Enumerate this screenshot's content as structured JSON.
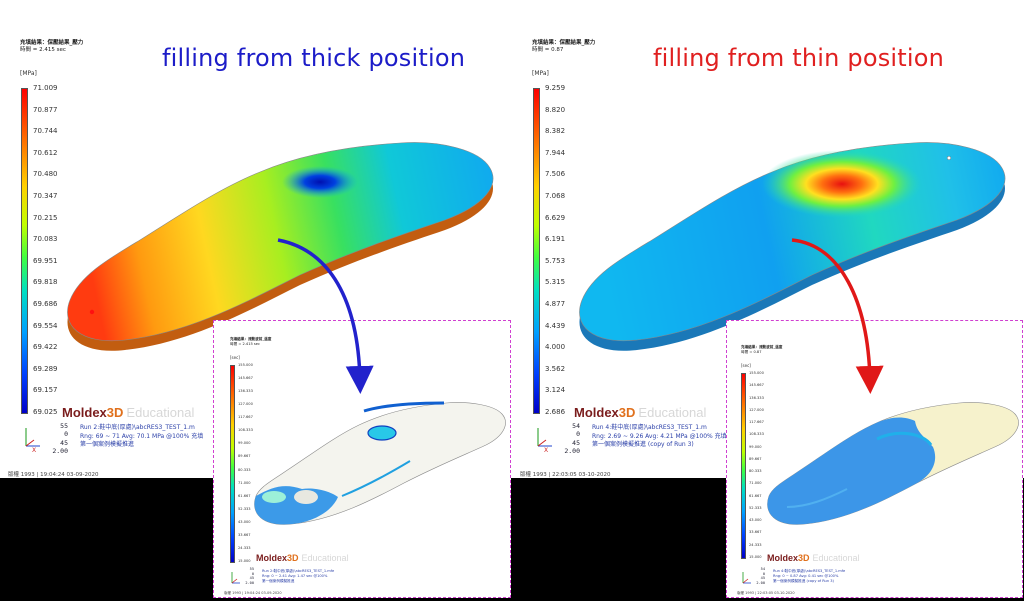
{
  "left_panel": {
    "meta_line1": "充填結果：保壓結果_壓力",
    "meta_line2": "時間 = 2.415 sec",
    "unit": "[MPa]",
    "headline": "filling from thick position",
    "headline_color": "#1c1cc8",
    "legend_ticks": [
      "71.009",
      "70.877",
      "70.744",
      "70.612",
      "70.480",
      "70.347",
      "70.215",
      "70.083",
      "69.951",
      "69.818",
      "69.686",
      "69.554",
      "69.422",
      "69.289",
      "69.157",
      "69.025"
    ],
    "brand": {
      "m": "Moldex",
      "d3": "3D",
      "edu": "Educational"
    },
    "view_info": [
      "55",
      "0",
      "45",
      "2.00"
    ],
    "footer": [
      "Run 2:鞋中底(厚處)\\abcRES3_TEST_1.m",
      "Rng: 69 ~ 71  Avg: 70.1 MPa @100% 充填",
      "第一個案例模擬推進"
    ],
    "stamp": "版權 1993 | 19:04:24 03-09-2020"
  },
  "right_panel": {
    "meta_line1": "充填結果：保壓結果_壓力",
    "meta_line2": "時間 = 0.87",
    "unit": "[MPa]",
    "headline": "filling from thin position",
    "headline_color": "#e02020",
    "legend_ticks": [
      "9.259",
      "8.820",
      "8.382",
      "7.944",
      "7.506",
      "7.068",
      "6.629",
      "6.191",
      "5.753",
      "5.315",
      "4.877",
      "4.439",
      "4.000",
      "3.562",
      "3.124",
      "2.686"
    ],
    "brand": {
      "m": "Moldex",
      "d3": "3D",
      "edu": "Educational"
    },
    "view_info": [
      "54",
      "0",
      "45",
      "2.00"
    ],
    "footer": [
      "Run 4:鞋中底(厚處)\\abcRES3_TEST_1.m",
      "Rng: 2.69 ~ 9.26  Avg: 4.21 MPa @100% 充填",
      "第一個案例模擬推進 (copy of Run 3)"
    ],
    "stamp": "版權 1993 | 22:03:05 03-10-2020"
  },
  "inset_left": {
    "meta_line1": "充填結果：流動波前_溫度",
    "meta_line2": "時間 = 2.415 sec",
    "unit": "[sec]",
    "legend_ticks": [
      "155.000",
      "145.667",
      "136.333",
      "127.000",
      "117.667",
      "108.333",
      "99.000",
      "89.667",
      "80.333",
      "71.000",
      "61.667",
      "52.333",
      "43.000",
      "33.667",
      "24.333",
      "15.000"
    ],
    "brand": {
      "m": "Moldex",
      "d3": "3D",
      "edu": "Educational"
    },
    "view_info": [
      "55",
      "0",
      "45",
      "2.00"
    ],
    "footer": [
      "Run 2:鞋中底(厚處)\\abcRES3_TEST_1.mfe",
      "Rng: 0 ~ 2.41  Avg: 1.47 sec @100%",
      "第一個案例模擬推進"
    ],
    "stamp": "版權 1993 | 19:04:24 03-09-2020"
  },
  "inset_right": {
    "meta_line1": "充填結果：流動波前_溫度",
    "meta_line2": "時間 = 0.87",
    "unit": "[sec]",
    "legend_ticks": [
      "155.000",
      "145.667",
      "136.333",
      "127.000",
      "117.667",
      "108.333",
      "99.000",
      "89.667",
      "80.333",
      "71.000",
      "61.667",
      "52.333",
      "43.000",
      "33.667",
      "24.333",
      "15.000"
    ],
    "brand": {
      "m": "Moldex",
      "d3": "3D",
      "edu": "Educational"
    },
    "view_info": [
      "54",
      "0",
      "45",
      "2.00"
    ],
    "footer": [
      "Run 4:鞋中底(厚處)\\abcRES3_TEST_1.mfe",
      "Rng: 0 ~ 0.87  Avg: 0.41 sec @100%",
      "第一個案例模擬推進 (copy of Run 3)"
    ],
    "stamp": "版權 1993 | 22:03:05 03-10-2020"
  },
  "colors": {
    "arrow_left": "#2222cc",
    "arrow_right": "#e01818",
    "inset_border": "#d040d0"
  }
}
